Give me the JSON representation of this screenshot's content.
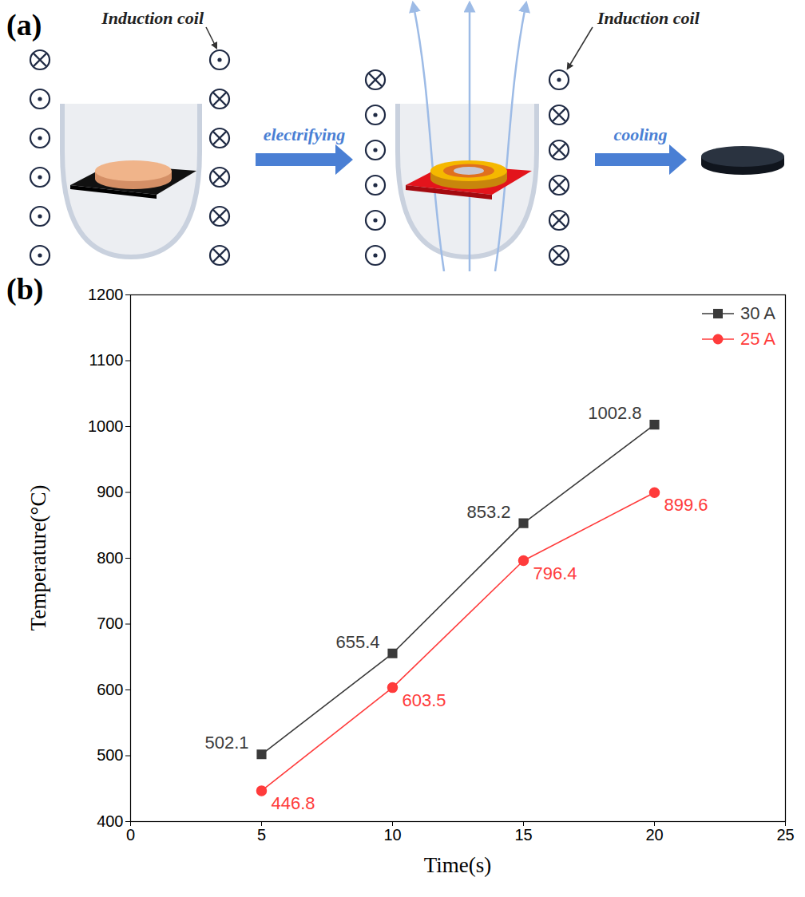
{
  "diagram": {
    "panel_label": "(a)",
    "coil_labels": [
      "Induction coil",
      "Induction coil"
    ],
    "steps": [
      "electrifying",
      "cooling"
    ]
  },
  "chart_data": {
    "type": "line",
    "panel_label": "(b)",
    "xlabel": "Time(s)",
    "ylabel": "Temperature(°C)",
    "x": [
      5,
      10,
      15,
      20
    ],
    "series": [
      {
        "name": "30 A",
        "color": "#3a3a3a",
        "marker": "square",
        "values": [
          502.1,
          655.4,
          853.2,
          1002.8
        ]
      },
      {
        "name": "25 A",
        "color": "#ff3b3b",
        "marker": "circle",
        "values": [
          446.8,
          603.5,
          796.4,
          899.6
        ]
      }
    ],
    "xlim": [
      0,
      25
    ],
    "xticks": [
      0,
      5,
      10,
      15,
      20,
      25
    ],
    "ylim": [
      400,
      1200
    ],
    "yticks": [
      400,
      500,
      600,
      700,
      800,
      900,
      1000,
      1100,
      1200
    ],
    "data_labels": true,
    "legend": "top-right"
  }
}
